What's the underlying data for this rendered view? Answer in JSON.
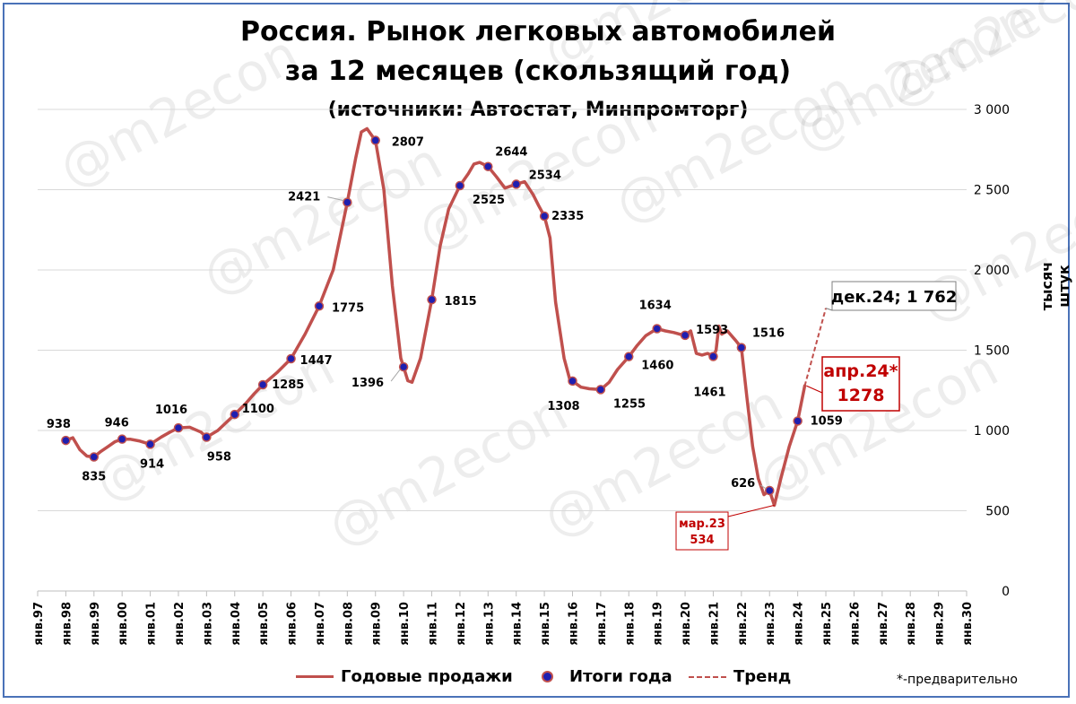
{
  "title_line1": "Россия. Рынок легковых автомобилей",
  "title_line2": "за 12 месяцев (скользящий год)",
  "subtitle": "(источники: Автостат, Минпромторг)",
  "unit_label": "тысяч штук",
  "footnote": "*-предварительно",
  "watermark": "@m2econ",
  "legend": {
    "sales": "Годовые продажи",
    "totals": "Итоги года",
    "trend": "Тренд"
  },
  "colors": {
    "line": "#c0504d",
    "marker": "#1f1fb0",
    "frame": "#4a72b8",
    "callout": "#c00000"
  },
  "chart_data": {
    "type": "line",
    "ylabel": "тысяч штук",
    "ylim": [
      0,
      3000
    ],
    "yticks": [
      0,
      500,
      1000,
      1500,
      2000,
      2500,
      3000
    ],
    "ytick_labels": [
      "0",
      "500",
      "1 000",
      "1 500",
      "2 000",
      "2 500",
      "3 000"
    ],
    "xlim": [
      1997,
      2030
    ],
    "xtick_labels": [
      "янв.97",
      "янв.98",
      "янв.99",
      "янв.00",
      "янв.01",
      "янв.02",
      "янв.03",
      "янв.04",
      "янв.05",
      "янв.06",
      "янв.07",
      "янв.08",
      "янв.09",
      "янв.10",
      "янв.11",
      "янв.12",
      "янв.13",
      "янв.14",
      "янв.15",
      "янв.16",
      "янв.17",
      "янв.18",
      "янв.19",
      "янв.20",
      "янв.21",
      "янв.22",
      "янв.23",
      "янв.24",
      "янв.25",
      "янв.26",
      "янв.27",
      "янв.28",
      "янв.29",
      "янв.30"
    ],
    "series": [
      {
        "name": "Годовые продажи",
        "x": [
          1998.0,
          1998.25,
          1998.5,
          1998.75,
          1999.0,
          1999.25,
          1999.5,
          1999.75,
          2000.0,
          2000.3,
          2000.6,
          2001.0,
          2001.4,
          2001.7,
          2002.0,
          2002.4,
          2002.8,
          2003.0,
          2003.4,
          2003.7,
          2004.0,
          2004.4,
          2004.7,
          2005.0,
          2005.5,
          2006.0,
          2006.5,
          2007.0,
          2007.5,
          2008.0,
          2008.3,
          2008.5,
          2008.7,
          2008.9,
          2009.0,
          2009.3,
          2009.6,
          2009.9,
          2010.0,
          2010.15,
          2010.3,
          2010.6,
          2011.0,
          2011.3,
          2011.6,
          2012.0,
          2012.3,
          2012.5,
          2012.7,
          2013.0,
          2013.3,
          2013.6,
          2014.0,
          2014.3,
          2014.6,
          2014.8,
          2015.0,
          2015.2,
          2015.4,
          2015.7,
          2015.9,
          2016.0,
          2016.3,
          2016.6,
          2017.0,
          2017.3,
          2017.6,
          2018.0,
          2018.3,
          2018.6,
          2019.0,
          2019.3,
          2019.6,
          2019.8,
          2020.0,
          2020.2,
          2020.4,
          2020.6,
          2020.8,
          2021.0,
          2021.1,
          2021.2,
          2021.3,
          2021.5,
          2021.8,
          2022.0,
          2022.2,
          2022.4,
          2022.6,
          2022.8,
          2023.0,
          2023.17,
          2023.4,
          2023.7,
          2024.0,
          2024.25
        ],
        "values": [
          938,
          955,
          880,
          840,
          835,
          870,
          900,
          930,
          946,
          945,
          935,
          914,
          960,
          990,
          1016,
          1020,
          990,
          958,
          1000,
          1050,
          1100,
          1170,
          1230,
          1285,
          1360,
          1447,
          1600,
          1775,
          2000,
          2421,
          2700,
          2860,
          2880,
          2830,
          2807,
          2500,
          1900,
          1450,
          1396,
          1310,
          1300,
          1450,
          1815,
          2150,
          2380,
          2525,
          2600,
          2660,
          2670,
          2644,
          2580,
          2510,
          2534,
          2550,
          2470,
          2400,
          2335,
          2200,
          1800,
          1450,
          1320,
          1308,
          1270,
          1260,
          1255,
          1300,
          1380,
          1460,
          1530,
          1590,
          1634,
          1620,
          1610,
          1600,
          1593,
          1620,
          1480,
          1470,
          1480,
          1461,
          1500,
          1650,
          1600,
          1620,
          1560,
          1516,
          1200,
          900,
          700,
          600,
          626,
          534,
          700,
          900,
          1059,
          1278
        ]
      },
      {
        "name": "Итоги года",
        "x": [
          1998,
          1999,
          2000,
          2001,
          2002,
          2003,
          2004,
          2005,
          2006,
          2007,
          2008,
          2009,
          2010,
          2011,
          2012,
          2013,
          2014,
          2015,
          2016,
          2017,
          2018,
          2019,
          2020,
          2021,
          2022,
          2023,
          2024
        ],
        "values": [
          938,
          835,
          946,
          914,
          1016,
          958,
          1100,
          1285,
          1447,
          1775,
          2421,
          2807,
          1396,
          1815,
          2525,
          2644,
          2534,
          2335,
          1308,
          1255,
          1460,
          1634,
          1593,
          1461,
          1516,
          626,
          1059
        ]
      },
      {
        "name": "Тренд",
        "x": [
          2024.25,
          2025.0
        ],
        "values": [
          1278,
          1762
        ]
      }
    ],
    "annotations": [
      {
        "text": "мар.23",
        "value_text": "534"
      },
      {
        "text": "апр.24*",
        "value_text": "1278"
      },
      {
        "text": "дек.24; 1 762"
      }
    ],
    "grid": "horizontal",
    "legend_position": "bottom"
  }
}
